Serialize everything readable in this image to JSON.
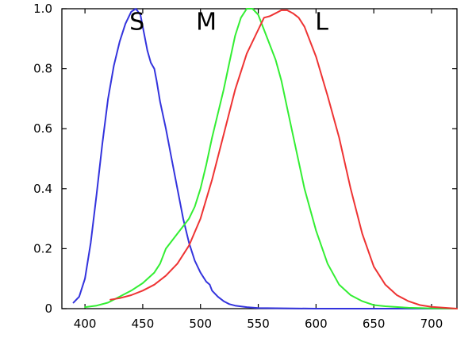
{
  "chart_data": {
    "type": "line",
    "title": "",
    "xlabel": "",
    "ylabel": "",
    "xlim": [
      380,
      722
    ],
    "ylim": [
      0,
      1.0
    ],
    "grid": false,
    "x_ticks": [
      400,
      450,
      500,
      550,
      600,
      650,
      700
    ],
    "x_tick_labels": [
      "400",
      "450",
      "500",
      "550",
      "600",
      "650",
      "700"
    ],
    "y_ticks": [
      0,
      0.2,
      0.4,
      0.6,
      0.8,
      1.0
    ],
    "y_tick_labels": [
      "0",
      "0.2",
      "0.4",
      "0.6",
      "0.8",
      "1.0"
    ],
    "series": [
      {
        "name": "S",
        "color": "#3333dd",
        "label_at": [
          445,
          0.93
        ],
        "points": [
          [
            390,
            0.02
          ],
          [
            395,
            0.04
          ],
          [
            400,
            0.1
          ],
          [
            405,
            0.22
          ],
          [
            410,
            0.38
          ],
          [
            415,
            0.55
          ],
          [
            420,
            0.7
          ],
          [
            425,
            0.81
          ],
          [
            430,
            0.89
          ],
          [
            435,
            0.95
          ],
          [
            440,
            0.99
          ],
          [
            444,
            1.0
          ],
          [
            448,
            0.98
          ],
          [
            451,
            0.92
          ],
          [
            454,
            0.86
          ],
          [
            457,
            0.82
          ],
          [
            460,
            0.8
          ],
          [
            462,
            0.76
          ],
          [
            465,
            0.69
          ],
          [
            470,
            0.6
          ],
          [
            475,
            0.5
          ],
          [
            480,
            0.4
          ],
          [
            485,
            0.3
          ],
          [
            490,
            0.22
          ],
          [
            495,
            0.16
          ],
          [
            500,
            0.12
          ],
          [
            505,
            0.09
          ],
          [
            508,
            0.08
          ],
          [
            510,
            0.06
          ],
          [
            515,
            0.04
          ],
          [
            520,
            0.025
          ],
          [
            525,
            0.015
          ],
          [
            530,
            0.01
          ],
          [
            540,
            0.005
          ],
          [
            550,
            0.002
          ],
          [
            600,
            0.0
          ],
          [
            722,
            0.0
          ]
        ]
      },
      {
        "name": "M",
        "color": "#33ee33",
        "label_at": [
          505,
          0.93
        ],
        "points": [
          [
            400,
            0.005
          ],
          [
            410,
            0.01
          ],
          [
            420,
            0.02
          ],
          [
            430,
            0.04
          ],
          [
            440,
            0.06
          ],
          [
            450,
            0.085
          ],
          [
            460,
            0.12
          ],
          [
            465,
            0.15
          ],
          [
            470,
            0.2
          ],
          [
            480,
            0.25
          ],
          [
            490,
            0.3
          ],
          [
            495,
            0.34
          ],
          [
            500,
            0.4
          ],
          [
            505,
            0.48
          ],
          [
            510,
            0.57
          ],
          [
            515,
            0.65
          ],
          [
            520,
            0.73
          ],
          [
            525,
            0.82
          ],
          [
            530,
            0.91
          ],
          [
            535,
            0.97
          ],
          [
            540,
            1.0
          ],
          [
            545,
            1.0
          ],
          [
            550,
            0.98
          ],
          [
            555,
            0.93
          ],
          [
            560,
            0.88
          ],
          [
            565,
            0.83
          ],
          [
            570,
            0.76
          ],
          [
            575,
            0.67
          ],
          [
            580,
            0.58
          ],
          [
            590,
            0.4
          ],
          [
            600,
            0.26
          ],
          [
            610,
            0.15
          ],
          [
            620,
            0.08
          ],
          [
            630,
            0.045
          ],
          [
            640,
            0.025
          ],
          [
            650,
            0.012
          ],
          [
            660,
            0.008
          ],
          [
            680,
            0.003
          ],
          [
            700,
            0.001
          ],
          [
            722,
            0.0
          ]
        ]
      },
      {
        "name": "L",
        "color": "#ee3333",
        "label_at": [
          605,
          0.93
        ],
        "points": [
          [
            422,
            0.03
          ],
          [
            430,
            0.035
          ],
          [
            440,
            0.045
          ],
          [
            450,
            0.06
          ],
          [
            460,
            0.08
          ],
          [
            470,
            0.11
          ],
          [
            480,
            0.15
          ],
          [
            490,
            0.21
          ],
          [
            500,
            0.3
          ],
          [
            510,
            0.43
          ],
          [
            520,
            0.58
          ],
          [
            530,
            0.73
          ],
          [
            540,
            0.85
          ],
          [
            550,
            0.93
          ],
          [
            555,
            0.97
          ],
          [
            560,
            0.975
          ],
          [
            565,
            0.985
          ],
          [
            570,
            0.995
          ],
          [
            575,
            0.995
          ],
          [
            580,
            0.985
          ],
          [
            585,
            0.97
          ],
          [
            590,
            0.94
          ],
          [
            600,
            0.84
          ],
          [
            610,
            0.71
          ],
          [
            620,
            0.57
          ],
          [
            630,
            0.4
          ],
          [
            640,
            0.25
          ],
          [
            650,
            0.14
          ],
          [
            660,
            0.08
          ],
          [
            670,
            0.045
          ],
          [
            680,
            0.025
          ],
          [
            690,
            0.012
          ],
          [
            700,
            0.006
          ],
          [
            722,
            0.0
          ]
        ]
      }
    ]
  }
}
